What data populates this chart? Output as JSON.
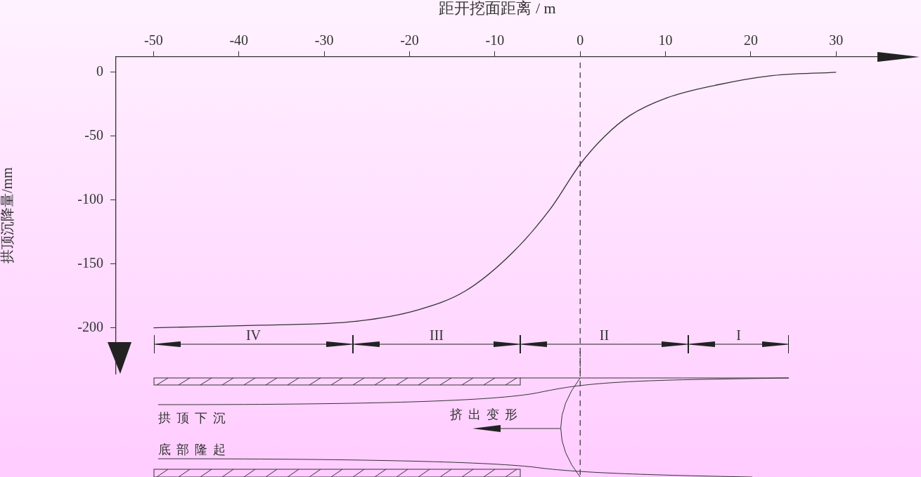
{
  "chart_data": {
    "type": "line",
    "xlabel": "距开挖面距离 / m",
    "ylabel": "拱顶沉降量/mm",
    "xlim": [
      -54.4,
      35
    ],
    "xticks": [
      -50,
      -40,
      -30,
      -20,
      -10,
      0,
      10,
      20,
      30
    ],
    "ylim": [
      -236,
      12
    ],
    "yticks": [
      0,
      -50,
      -100,
      -150,
      -200
    ],
    "grid": false,
    "legend": false,
    "marker": "none",
    "line_style": "solid",
    "series": [
      {
        "color": "#333333",
        "x": [
          -50,
          -37.4,
          -26.3,
          -19,
          -13.4,
          -7.9,
          -3.5,
          0,
          2.9,
          5.8,
          10.2,
          16,
          22,
          30
        ],
        "values": [
          -200,
          -198,
          -195,
          -186,
          -171,
          -141,
          -107,
          -72,
          -50,
          -34,
          -20,
          -10,
          -3,
          0
        ]
      }
    ],
    "ref_lines": [
      {
        "axis": "x",
        "value": 0,
        "line_style": "dashed",
        "color": "#333333"
      }
    ],
    "annotations": [
      "IV",
      "III",
      "II",
      "I",
      "拱顶下沉",
      "底部隆起",
      "挤出变形"
    ]
  }
}
